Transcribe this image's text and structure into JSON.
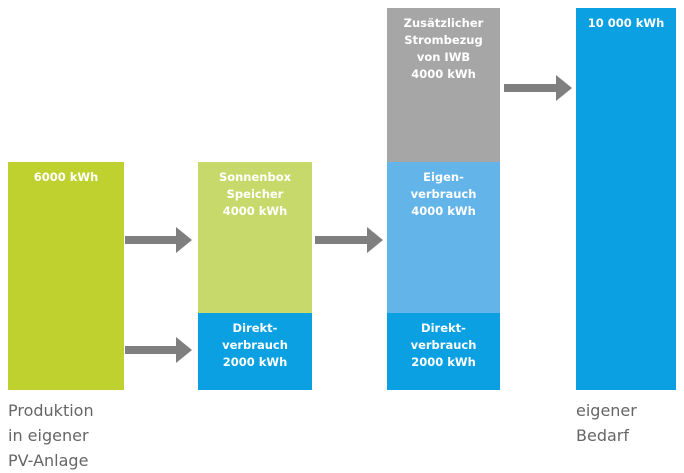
{
  "blocks": [
    {
      "lines": [
        "6000 kWh"
      ]
    },
    {
      "lines": [
        "Sonnenbox",
        "Speicher",
        "4000 kWh"
      ]
    },
    {
      "lines": [
        "Direkt-",
        "verbrauch",
        "2000 kWh"
      ]
    },
    {
      "lines": [
        "Zusätzlicher",
        "Strombezug",
        "von IWB",
        "4000 kWh"
      ]
    },
    {
      "lines": [
        "Eigen-",
        "verbrauch",
        "4000 kWh"
      ]
    },
    {
      "lines": [
        "Direkt-",
        "verbrauch",
        "2000 kWh"
      ]
    },
    {
      "lines": [
        "10 000 kWh"
      ]
    }
  ],
  "captions": [
    {
      "lines": [
        "Produktion",
        "in eigener",
        "PV-Anlage"
      ]
    },
    {
      "lines": [
        "eigener",
        "Bedarf"
      ]
    }
  ]
}
